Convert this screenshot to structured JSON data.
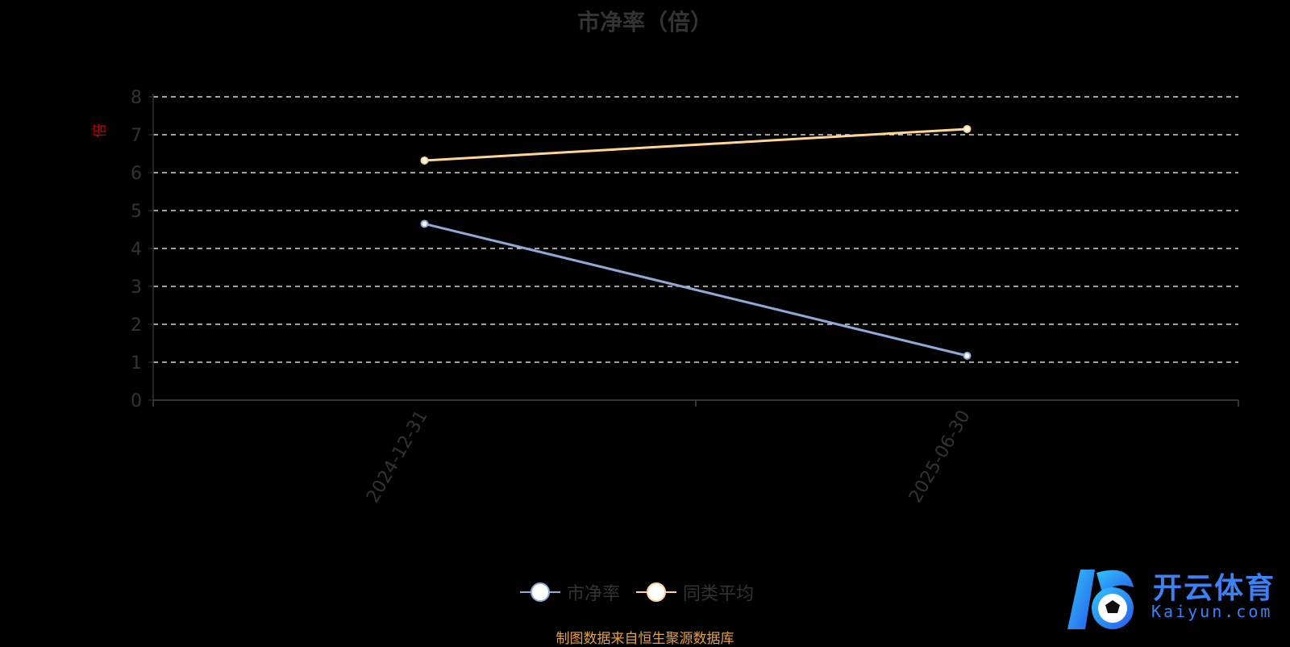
{
  "chart_data": {
    "type": "line",
    "title": "市净率（倍）",
    "ylabel": "倍",
    "xlabel": "",
    "categories": [
      "2024-12-31",
      "2025-06-30"
    ],
    "ylim": [
      0,
      8
    ],
    "yticks": [
      0,
      1,
      2,
      3,
      4,
      5,
      6,
      7,
      8
    ],
    "grid": true,
    "legend_position": "bottom-center",
    "series": [
      {
        "name": "市净率",
        "values": [
          4.65,
          1.17
        ],
        "color": "#8fa9d8"
      },
      {
        "name": "同类平均",
        "values": [
          6.32,
          7.15
        ],
        "color": "#ffd494"
      }
    ]
  },
  "source_note": "制图数据来自恒生聚源数据库",
  "logo": {
    "text": "开云体育",
    "sub": "Kaiyun.com",
    "icon": "soccer-ball-k-logo"
  },
  "colors": {
    "background": "#000000",
    "axis_text": "#333333",
    "grid": "#ffffff",
    "ylabel": "#cc0000",
    "source": "#e6a23c"
  }
}
